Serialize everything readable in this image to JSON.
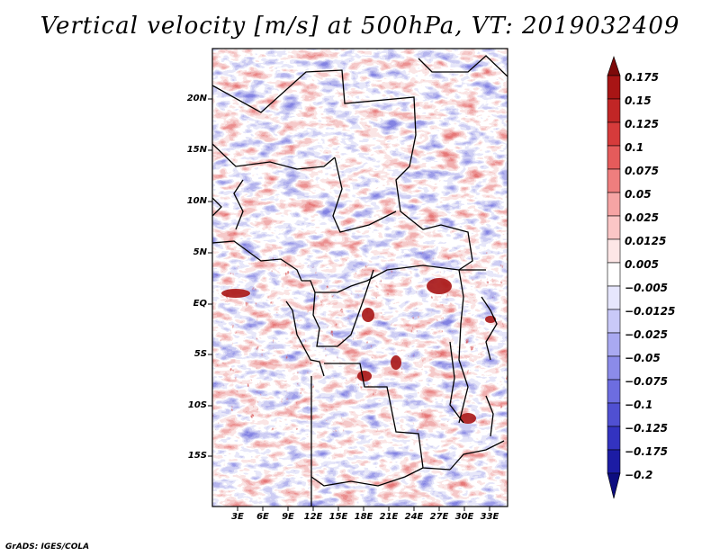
{
  "title": "Vertical velocity [m/s] at 500hPa, VT: 2019032409",
  "footer": "GrADS: IGES/COLA",
  "map": {
    "variable": "Vertical velocity",
    "units": "m/s",
    "level": "500hPa",
    "valid_time": "2019032409",
    "lat_labels": [
      "20N",
      "15N",
      "10N",
      "5N",
      "EQ",
      "5S",
      "10S",
      "15S"
    ],
    "lon_labels": [
      "3E",
      "6E",
      "9E",
      "12E",
      "15E",
      "18E",
      "21E",
      "24E",
      "27E",
      "30E",
      "33E"
    ],
    "lon_range": [
      0,
      35
    ],
    "lat_range": [
      -20,
      25
    ]
  },
  "colorbar": {
    "labels": [
      "0.175",
      "0.15",
      "0.125",
      "0.1",
      "0.075",
      "0.05",
      "0.025",
      "0.0125",
      "0.005",
      "−0.005",
      "−0.0125",
      "−0.025",
      "−0.05",
      "−0.075",
      "−0.1",
      "−0.125",
      "−0.175",
      "−0.2"
    ],
    "colors": [
      "#7d0a0a",
      "#a81515",
      "#c12626",
      "#d63b3b",
      "#e55b5b",
      "#ef7e7e",
      "#f6a4a4",
      "#fbc6c6",
      "#fde6e6",
      "#ffffff",
      "#e6e6fd",
      "#c9c9f8",
      "#a9a9f1",
      "#8b8be9",
      "#6d6de0",
      "#5050d2",
      "#3333c0",
      "#1c1ca4",
      "#0d0d80"
    ]
  }
}
